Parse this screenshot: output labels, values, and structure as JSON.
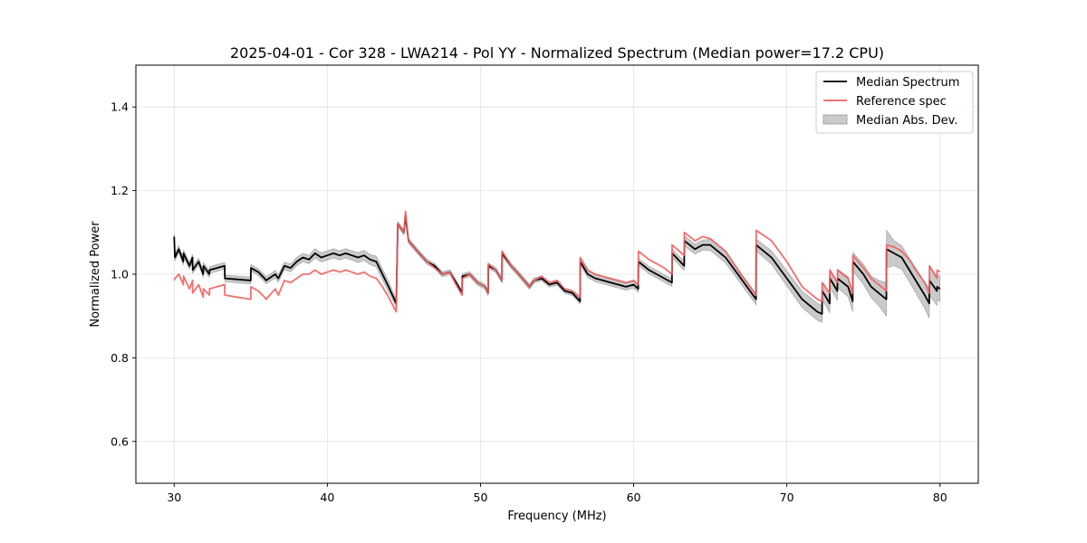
{
  "chart_data": {
    "type": "line",
    "title": "2025-04-01 - Cor 328 - LWA214 - Pol YY - Normalized Spectrum (Median power=17.2 CPU)",
    "xlabel": "Frequency (MHz)",
    "ylabel": "Normalized Power",
    "xlim": [
      27.5,
      82.5
    ],
    "ylim": [
      0.5,
      1.5
    ],
    "xticks": [
      30,
      40,
      50,
      60,
      70,
      80
    ],
    "yticks": [
      0.6,
      0.8,
      1.0,
      1.2,
      1.4
    ],
    "xtick_labels": [
      "30",
      "40",
      "50",
      "60",
      "70",
      "80"
    ],
    "ytick_labels": [
      "0.6",
      "0.8",
      "1.0",
      "1.2",
      "1.4"
    ],
    "grid": true,
    "legend_position": "top-right",
    "series": [
      {
        "name": "Median Spectrum",
        "color": "#000000",
        "x": [
          30.0,
          30.05,
          30.3,
          30.6,
          30.61,
          31.0,
          31.2,
          31.21,
          31.6,
          31.9,
          31.91,
          32.3,
          32.31,
          33.3,
          33.31,
          35.0,
          35.01,
          35.5,
          35.9,
          36.0,
          36.6,
          36.8,
          37.2,
          37.6,
          38.0,
          38.4,
          38.8,
          39.2,
          39.6,
          40.0,
          40.4,
          40.8,
          41.2,
          41.6,
          42.0,
          42.4,
          42.8,
          43.2,
          43.6,
          44.0,
          44.5,
          44.6,
          45.0,
          45.1,
          45.3,
          46.0,
          46.5,
          47.0,
          47.5,
          48.0,
          48.4,
          48.8,
          48.81,
          49.3,
          49.8,
          50.3,
          50.5,
          50.51,
          51.0,
          51.4,
          51.41,
          52.0,
          52.5,
          53.2,
          53.5,
          54.0,
          54.5,
          55.0,
          55.5,
          56.0,
          56.5,
          56.51,
          57.0,
          57.5,
          58.0,
          58.5,
          59.0,
          59.5,
          60.0,
          60.3,
          60.31,
          61.0,
          61.5,
          62.0,
          62.5,
          62.51,
          63.3,
          63.31,
          64.0,
          64.5,
          65.0,
          66.0,
          67.0,
          67.99,
          68.0,
          69.0,
          70.0,
          71.0,
          71.5,
          72.0,
          72.3,
          72.31,
          72.8,
          72.81,
          73.3,
          73.31,
          74.0,
          74.3,
          74.31,
          75.0,
          75.5,
          76.0,
          76.5,
          76.51,
          77.0,
          77.5,
          78.0,
          78.5,
          79.0,
          79.3,
          79.31,
          79.8,
          79.81,
          80.0
        ],
        "values": [
          1.09,
          1.04,
          1.06,
          1.03,
          1.05,
          1.02,
          1.04,
          1.01,
          1.03,
          1.0,
          1.02,
          1.0,
          1.01,
          1.02,
          0.99,
          0.985,
          1.015,
          1.005,
          0.99,
          0.985,
          1.0,
          0.99,
          1.02,
          1.015,
          1.03,
          1.04,
          1.035,
          1.05,
          1.04,
          1.045,
          1.05,
          1.045,
          1.05,
          1.045,
          1.04,
          1.045,
          1.035,
          1.03,
          1.0,
          0.97,
          0.93,
          1.12,
          1.1,
          1.14,
          1.08,
          1.05,
          1.03,
          1.02,
          1.0,
          1.005,
          0.98,
          0.955,
          0.995,
          1.0,
          0.98,
          0.97,
          0.955,
          1.02,
          1.01,
          0.985,
          1.05,
          1.02,
          1.0,
          0.97,
          0.985,
          0.99,
          0.975,
          0.98,
          0.96,
          0.955,
          0.935,
          1.03,
          1.0,
          0.99,
          0.985,
          0.98,
          0.975,
          0.97,
          0.975,
          0.965,
          1.03,
          1.01,
          1.0,
          0.99,
          0.98,
          1.05,
          1.02,
          1.08,
          1.06,
          1.07,
          1.07,
          1.04,
          0.99,
          0.94,
          1.07,
          1.04,
          0.99,
          0.94,
          0.925,
          0.91,
          0.905,
          0.96,
          0.93,
          0.99,
          0.96,
          0.99,
          0.97,
          0.935,
          1.03,
          1.0,
          0.97,
          0.955,
          0.94,
          1.06,
          1.05,
          1.04,
          1.01,
          0.98,
          0.95,
          0.93,
          0.985,
          0.96,
          0.97,
          0.965
        ]
      },
      {
        "name": "Reference spec",
        "color": "#f06060",
        "x": [
          30.0,
          30.05,
          30.3,
          30.6,
          30.61,
          31.0,
          31.2,
          31.21,
          31.6,
          31.9,
          31.91,
          32.3,
          32.31,
          33.3,
          33.31,
          35.0,
          35.01,
          35.5,
          35.9,
          36.0,
          36.6,
          36.8,
          37.2,
          37.6,
          38.0,
          38.4,
          38.8,
          39.2,
          39.6,
          40.0,
          40.4,
          40.8,
          41.2,
          41.6,
          42.0,
          42.4,
          42.8,
          43.2,
          43.6,
          44.0,
          44.5,
          44.6,
          45.0,
          45.1,
          45.3,
          46.0,
          46.5,
          47.0,
          47.5,
          48.0,
          48.4,
          48.8,
          48.81,
          49.3,
          49.8,
          50.3,
          50.5,
          50.51,
          51.0,
          51.4,
          51.41,
          52.0,
          52.5,
          53.2,
          53.5,
          54.0,
          54.5,
          55.0,
          55.5,
          56.0,
          56.5,
          56.51,
          57.0,
          57.5,
          58.0,
          58.5,
          59.0,
          59.5,
          60.0,
          60.3,
          60.31,
          61.0,
          61.5,
          62.0,
          62.5,
          62.51,
          63.3,
          63.31,
          64.0,
          64.5,
          65.0,
          66.0,
          67.0,
          67.99,
          68.0,
          69.0,
          70.0,
          71.0,
          71.5,
          72.0,
          72.3,
          72.31,
          72.8,
          72.81,
          73.3,
          73.31,
          74.0,
          74.3,
          74.31,
          75.0,
          75.5,
          76.0,
          76.5,
          76.51,
          77.0,
          77.5,
          78.0,
          78.5,
          79.0,
          79.3,
          79.31,
          79.8,
          79.81,
          80.0
        ],
        "values": [
          0.985,
          0.99,
          1.0,
          0.975,
          0.995,
          0.965,
          0.985,
          0.955,
          0.975,
          0.945,
          0.965,
          0.95,
          0.965,
          0.975,
          0.95,
          0.94,
          0.97,
          0.96,
          0.945,
          0.94,
          0.965,
          0.95,
          0.985,
          0.98,
          0.99,
          1.0,
          1.0,
          1.01,
          1.0,
          1.005,
          1.01,
          1.005,
          1.01,
          1.005,
          1.0,
          1.005,
          0.995,
          0.99,
          0.97,
          0.945,
          0.91,
          1.12,
          1.1,
          1.15,
          1.08,
          1.05,
          1.03,
          1.015,
          1.0,
          1.005,
          0.975,
          0.95,
          0.99,
          1.0,
          0.98,
          0.97,
          0.955,
          1.025,
          1.01,
          0.985,
          1.055,
          1.02,
          1.0,
          0.97,
          0.985,
          0.995,
          0.98,
          0.985,
          0.965,
          0.96,
          0.945,
          1.04,
          1.01,
          1.0,
          0.995,
          0.99,
          0.985,
          0.98,
          0.985,
          0.975,
          1.055,
          1.035,
          1.025,
          1.015,
          1.0,
          1.07,
          1.045,
          1.1,
          1.08,
          1.09,
          1.085,
          1.055,
          1.0,
          0.95,
          1.105,
          1.08,
          1.03,
          0.97,
          0.955,
          0.94,
          0.935,
          0.98,
          0.955,
          1.01,
          0.98,
          1.01,
          0.99,
          0.955,
          1.045,
          1.015,
          0.99,
          0.975,
          0.96,
          1.07,
          1.065,
          1.055,
          1.035,
          1.005,
          0.98,
          0.955,
          1.02,
          0.99,
          1.01,
          1.005
        ]
      }
    ],
    "band": {
      "name": "Median Abs. Dev.",
      "color": "#b8b8b8",
      "half_width": [
        0.008,
        0.008,
        0.008,
        0.008,
        0.008,
        0.008,
        0.008,
        0.008,
        0.008,
        0.008,
        0.008,
        0.008,
        0.008,
        0.008,
        0.008,
        0.008,
        0.008,
        0.008,
        0.008,
        0.008,
        0.009,
        0.009,
        0.009,
        0.009,
        0.01,
        0.01,
        0.01,
        0.011,
        0.011,
        0.011,
        0.011,
        0.011,
        0.011,
        0.011,
        0.012,
        0.012,
        0.012,
        0.013,
        0.013,
        0.013,
        0.008,
        0.006,
        0.006,
        0.006,
        0.006,
        0.006,
        0.006,
        0.006,
        0.006,
        0.006,
        0.006,
        0.006,
        0.006,
        0.006,
        0.006,
        0.006,
        0.006,
        0.006,
        0.006,
        0.006,
        0.006,
        0.006,
        0.006,
        0.006,
        0.006,
        0.006,
        0.006,
        0.006,
        0.006,
        0.006,
        0.006,
        0.008,
        0.008,
        0.008,
        0.008,
        0.008,
        0.008,
        0.008,
        0.008,
        0.008,
        0.008,
        0.009,
        0.009,
        0.009,
        0.009,
        0.01,
        0.011,
        0.012,
        0.012,
        0.012,
        0.013,
        0.013,
        0.013,
        0.013,
        0.014,
        0.016,
        0.018,
        0.019,
        0.02,
        0.02,
        0.02,
        0.02,
        0.022,
        0.022,
        0.022,
        0.022,
        0.024,
        0.024,
        0.022,
        0.024,
        0.026,
        0.03,
        0.04,
        0.045,
        0.03,
        0.028,
        0.028,
        0.03,
        0.032,
        0.035,
        0.035,
        0.035,
        0.03,
        0.03
      ]
    }
  }
}
